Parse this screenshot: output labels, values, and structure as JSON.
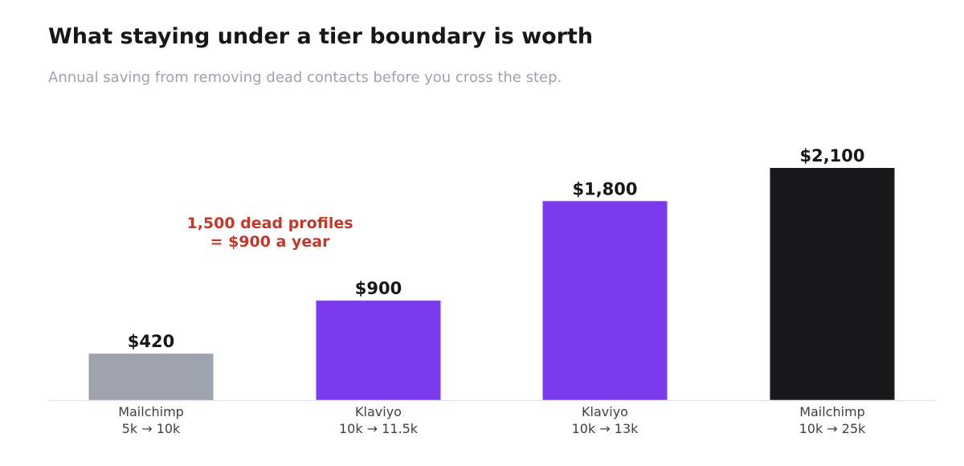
{
  "title": "What staying under a tier boundary is worth",
  "subtitle": "Annual saving from removing dead contacts before you cross the step.",
  "annotation": {
    "lines": [
      "1,500 dead profiles",
      "= $900 a year"
    ],
    "color": "#c0392b"
  },
  "chart_data": {
    "type": "bar",
    "categories": [
      [
        "Mailchimp",
        "5k → 10k"
      ],
      [
        "Klaviyo",
        "10k → 11.5k"
      ],
      [
        "Klaviyo",
        "10k → 13k"
      ],
      [
        "Mailchimp",
        "10k → 25k"
      ]
    ],
    "values": [
      420,
      900,
      1800,
      2100
    ],
    "value_labels": [
      "$420",
      "$900",
      "$1,800",
      "$2,100"
    ],
    "bar_colors": [
      "#9ca3af",
      "#7c3aed",
      "#7c3aed",
      "#18181b"
    ],
    "ylim": [
      0,
      2100
    ],
    "xlabel": "",
    "ylabel": "",
    "grid": false,
    "legend": "none"
  }
}
